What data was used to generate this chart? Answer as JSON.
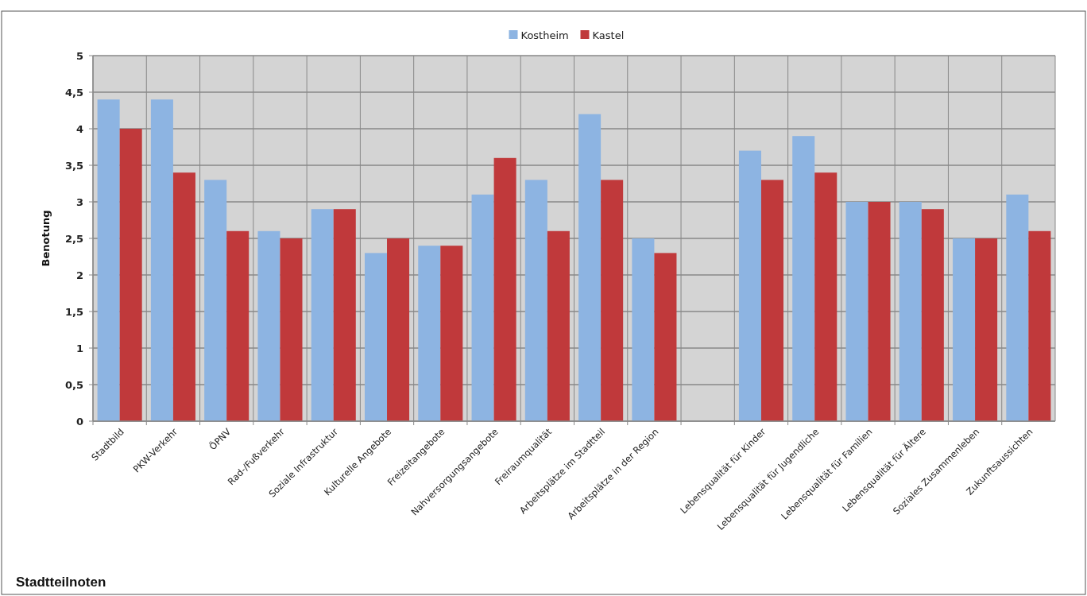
{
  "chart_data": {
    "type": "bar",
    "title": "Stadtteilnoten",
    "ylabel": "Benotung",
    "categories": [
      "Stadtbild",
      "PKW-Verkehr",
      "ÖPNV",
      "Rad-/Fußverkehr",
      "Soziale Infrastruktur",
      "Kulturelle  Angebote",
      "Freizeitangebote",
      "Nahversorgungsangebote",
      "Freiraumqualität",
      "Arbeitsplätze im Stadtteil",
      "Arbeitsplätze in der Region",
      null,
      "Lebensqualität für Kinder",
      "Lebensqualität für Jugendliche",
      "Lebensqualität für Familien",
      "Lebensqualität für Ältere",
      "Soziales Zusammenleben",
      "Zukunftsaussichten"
    ],
    "series": [
      {
        "name": "Kostheim",
        "color": "#8db4e2",
        "values": [
          4.4,
          4.4,
          3.3,
          2.6,
          2.9,
          2.3,
          2.4,
          3.1,
          3.3,
          4.2,
          2.5,
          null,
          3.7,
          3.9,
          3.0,
          3.0,
          2.5,
          3.1
        ]
      },
      {
        "name": "Kastel",
        "color": "#c0393b",
        "values": [
          4.0,
          3.4,
          2.6,
          2.5,
          2.9,
          2.5,
          2.4,
          3.6,
          2.6,
          3.3,
          2.3,
          null,
          3.3,
          3.4,
          3.0,
          2.9,
          2.5,
          2.6
        ]
      }
    ],
    "ylim": [
      0,
      5
    ],
    "yticks": [
      0,
      {
        "value": 0.5,
        "label": "0,5"
      },
      1,
      {
        "value": 1.5,
        "label": "1,5"
      },
      2,
      {
        "value": 2.5,
        "label": "2,5"
      },
      3,
      {
        "value": 3.5,
        "label": "3,5"
      },
      4,
      {
        "value": 4.5,
        "label": "4,5"
      },
      5
    ],
    "grid": true,
    "legend": "top"
  }
}
